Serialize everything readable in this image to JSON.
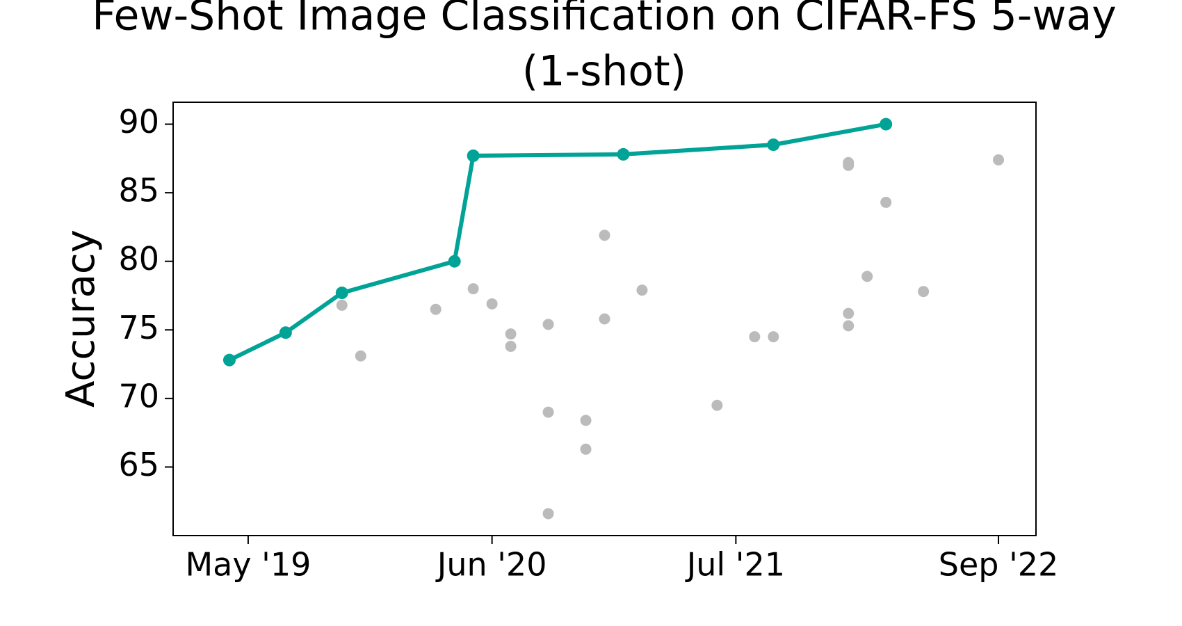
{
  "chart_data": {
    "type": "line",
    "title": [
      "Few-Shot Image Classification on CIFAR-FS 5-way",
      "(1-shot)"
    ],
    "ylabel": "Accuracy",
    "xlim": [
      "2019-01",
      "2022-11"
    ],
    "xticks": [
      {
        "value": "2019-05",
        "label": "May '19"
      },
      {
        "value": "2020-06",
        "label": "Jun '20"
      },
      {
        "value": "2021-07",
        "label": "Jul '21"
      },
      {
        "value": "2022-09",
        "label": "Sep '22"
      }
    ],
    "ylim": [
      60,
      91.6
    ],
    "yticks": [
      65,
      70,
      75,
      80,
      85,
      90
    ],
    "series": [
      {
        "color": "#bbbbbb",
        "line": false,
        "x": [
          "2019-10",
          "2019-11",
          "2020-03",
          "2020-05",
          "2020-06",
          "2020-07",
          "2020-07",
          "2020-09",
          "2020-09",
          "2020-09",
          "2020-11",
          "2020-11",
          "2020-12",
          "2020-12",
          "2021-02",
          "2021-06",
          "2021-08",
          "2021-09",
          "2022-01",
          "2022-01",
          "2022-01",
          "2022-01",
          "2022-02",
          "2022-03",
          "2022-05",
          "2022-09"
        ],
        "values": [
          76.8,
          73.1,
          76.5,
          78.0,
          76.9,
          74.7,
          73.8,
          69.0,
          61.6,
          75.4,
          68.4,
          66.3,
          81.9,
          75.8,
          77.9,
          69.5,
          74.5,
          74.5,
          87.2,
          87.0,
          76.2,
          75.3,
          78.9,
          84.3,
          77.8,
          87.4
        ]
      },
      {
        "color": "#00a396",
        "line": true,
        "x": [
          "2019-04",
          "2019-07",
          "2019-10",
          "2020-04",
          "2020-05",
          "2021-01",
          "2021-09",
          "2022-03"
        ],
        "values": [
          72.8,
          74.8,
          77.7,
          80.0,
          87.7,
          87.8,
          88.5,
          90.0
        ]
      }
    ]
  }
}
